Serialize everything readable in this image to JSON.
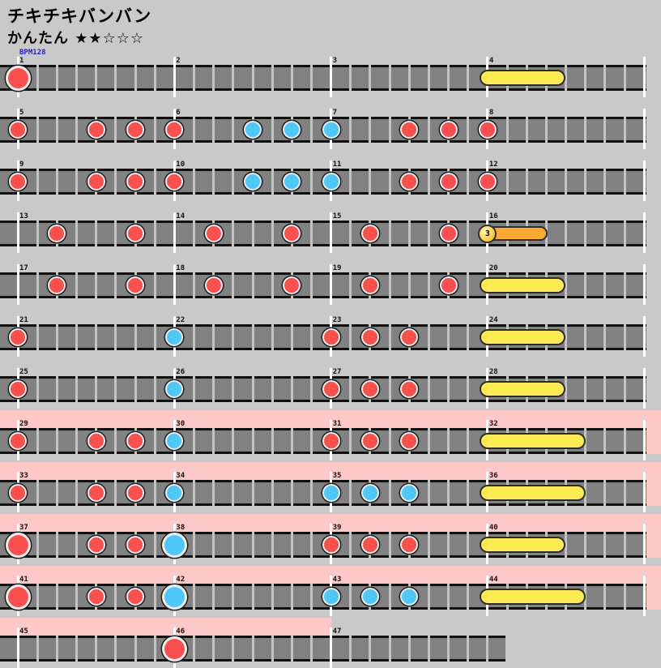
{
  "meta": {
    "title": "チキチキバンバン",
    "difficulty": "かんたん",
    "stars": "★★☆☆☆",
    "bpm_label": "BPM128"
  },
  "colors": {
    "background": "#c9c9c9",
    "track": "#818181",
    "track_border": "#111111",
    "divider": "#c4c4c4",
    "measure_line": "#ffffff",
    "gogo_band": "#ffc8c8",
    "don": "#f94f4f",
    "ka": "#4fc7f7",
    "drumroll": "#ffe955",
    "balloon_body": "#ffaa33",
    "note_ring": "#ececec",
    "note_outline": "#1d1d1d",
    "bpm_text": "#2222cc",
    "label_text": "#111111"
  },
  "rows": [
    {
      "gogo": "none",
      "measures": [
        {
          "n": "1",
          "notes": [
            [
              "DON",
              0
            ]
          ]
        },
        {
          "n": "2",
          "notes": []
        },
        {
          "n": "3",
          "notes": []
        },
        {
          "n": "4",
          "roll": {
            "kind": "drumroll",
            "end": 3.55
          }
        }
      ]
    },
    {
      "gogo": "none",
      "measures": [
        {
          "n": "5",
          "notes": [
            [
              "don",
              0
            ],
            [
              "don",
              4
            ],
            [
              "don",
              6
            ]
          ]
        },
        {
          "n": "6",
          "notes": [
            [
              "don",
              0
            ],
            [
              "ka",
              4
            ],
            [
              "ka",
              6
            ]
          ]
        },
        {
          "n": "7",
          "notes": [
            [
              "ka",
              0
            ],
            [
              "don",
              4
            ],
            [
              "don",
              6
            ]
          ]
        },
        {
          "n": "8",
          "notes": [
            [
              "don",
              0
            ]
          ]
        }
      ]
    },
    {
      "gogo": "none",
      "measures": [
        {
          "n": "9",
          "notes": [
            [
              "don",
              0
            ],
            [
              "don",
              4
            ],
            [
              "don",
              6
            ]
          ]
        },
        {
          "n": "10",
          "notes": [
            [
              "don",
              0
            ],
            [
              "ka",
              4
            ],
            [
              "ka",
              6
            ]
          ]
        },
        {
          "n": "11",
          "notes": [
            [
              "ka",
              0
            ],
            [
              "don",
              4
            ],
            [
              "don",
              6
            ]
          ]
        },
        {
          "n": "12",
          "notes": [
            [
              "don",
              0
            ]
          ]
        }
      ]
    },
    {
      "gogo": "none",
      "measures": [
        {
          "n": "13",
          "notes": [
            [
              "don",
              2
            ],
            [
              "don",
              6
            ]
          ]
        },
        {
          "n": "14",
          "notes": [
            [
              "don",
              2
            ],
            [
              "don",
              6
            ]
          ]
        },
        {
          "n": "15",
          "notes": [
            [
              "don",
              2
            ],
            [
              "don",
              6
            ]
          ]
        },
        {
          "n": "16",
          "roll": {
            "kind": "balloon",
            "end": 2.7,
            "count": "3"
          }
        }
      ]
    },
    {
      "gogo": "none",
      "measures": [
        {
          "n": "17",
          "notes": [
            [
              "don",
              2
            ],
            [
              "don",
              6
            ]
          ]
        },
        {
          "n": "18",
          "notes": [
            [
              "don",
              2
            ],
            [
              "don",
              6
            ]
          ]
        },
        {
          "n": "19",
          "notes": [
            [
              "don",
              2
            ],
            [
              "don",
              6
            ]
          ]
        },
        {
          "n": "20",
          "roll": {
            "kind": "drumroll",
            "end": 3.55
          }
        }
      ]
    },
    {
      "gogo": "none",
      "measures": [
        {
          "n": "21",
          "notes": [
            [
              "don",
              0
            ]
          ]
        },
        {
          "n": "22",
          "notes": [
            [
              "ka",
              0
            ]
          ]
        },
        {
          "n": "23",
          "notes": [
            [
              "don",
              0
            ],
            [
              "don",
              2
            ],
            [
              "don",
              4
            ]
          ]
        },
        {
          "n": "24",
          "roll": {
            "kind": "drumroll",
            "end": 3.55
          }
        }
      ]
    },
    {
      "gogo": "none",
      "measures": [
        {
          "n": "25",
          "notes": [
            [
              "don",
              0
            ]
          ]
        },
        {
          "n": "26",
          "notes": [
            [
              "ka",
              0
            ]
          ]
        },
        {
          "n": "27",
          "notes": [
            [
              "don",
              0
            ],
            [
              "don",
              2
            ],
            [
              "don",
              4
            ]
          ]
        },
        {
          "n": "28",
          "roll": {
            "kind": "drumroll",
            "end": 3.55
          }
        }
      ]
    },
    {
      "gogo": "full",
      "measures": [
        {
          "n": "29",
          "notes": [
            [
              "don",
              0
            ],
            [
              "don",
              4
            ],
            [
              "don",
              6
            ]
          ]
        },
        {
          "n": "30",
          "notes": [
            [
              "ka",
              0
            ]
          ]
        },
        {
          "n": "31",
          "notes": [
            [
              "don",
              0
            ],
            [
              "don",
              2
            ],
            [
              "don",
              4
            ]
          ]
        },
        {
          "n": "32",
          "roll": {
            "kind": "drumroll",
            "end": 4.6
          }
        }
      ]
    },
    {
      "gogo": "full",
      "measures": [
        {
          "n": "33",
          "notes": [
            [
              "don",
              0
            ],
            [
              "don",
              4
            ],
            [
              "don",
              6
            ]
          ]
        },
        {
          "n": "34",
          "notes": [
            [
              "ka",
              0
            ]
          ]
        },
        {
          "n": "35",
          "notes": [
            [
              "ka",
              0
            ],
            [
              "ka",
              2
            ],
            [
              "ka",
              4
            ]
          ]
        },
        {
          "n": "36",
          "roll": {
            "kind": "drumroll",
            "end": 4.6
          }
        }
      ]
    },
    {
      "gogo": "full",
      "measures": [
        {
          "n": "37",
          "notes": [
            [
              "DON",
              0
            ],
            [
              "don",
              4
            ],
            [
              "don",
              6
            ]
          ]
        },
        {
          "n": "38",
          "notes": [
            [
              "KA",
              0
            ]
          ]
        },
        {
          "n": "39",
          "notes": [
            [
              "don",
              0
            ],
            [
              "don",
              2
            ],
            [
              "don",
              4
            ]
          ]
        },
        {
          "n": "40",
          "roll": {
            "kind": "drumroll",
            "end": 3.55
          }
        }
      ]
    },
    {
      "gogo": "full",
      "measures": [
        {
          "n": "41",
          "notes": [
            [
              "DON",
              0
            ],
            [
              "don",
              4
            ],
            [
              "don",
              6
            ]
          ]
        },
        {
          "n": "42",
          "notes": [
            [
              "KA",
              0
            ]
          ]
        },
        {
          "n": "43",
          "notes": [
            [
              "ka",
              0
            ],
            [
              "ka",
              2
            ],
            [
              "ka",
              4
            ]
          ]
        },
        {
          "n": "44",
          "roll": {
            "kind": "drumroll",
            "end": 4.6
          }
        }
      ]
    },
    {
      "gogo": "partial",
      "short": true,
      "measures": [
        {
          "n": "45",
          "notes": []
        },
        {
          "n": "46",
          "notes": [
            [
              "DON",
              0
            ]
          ]
        },
        {
          "n": "47",
          "notes": []
        }
      ]
    }
  ]
}
